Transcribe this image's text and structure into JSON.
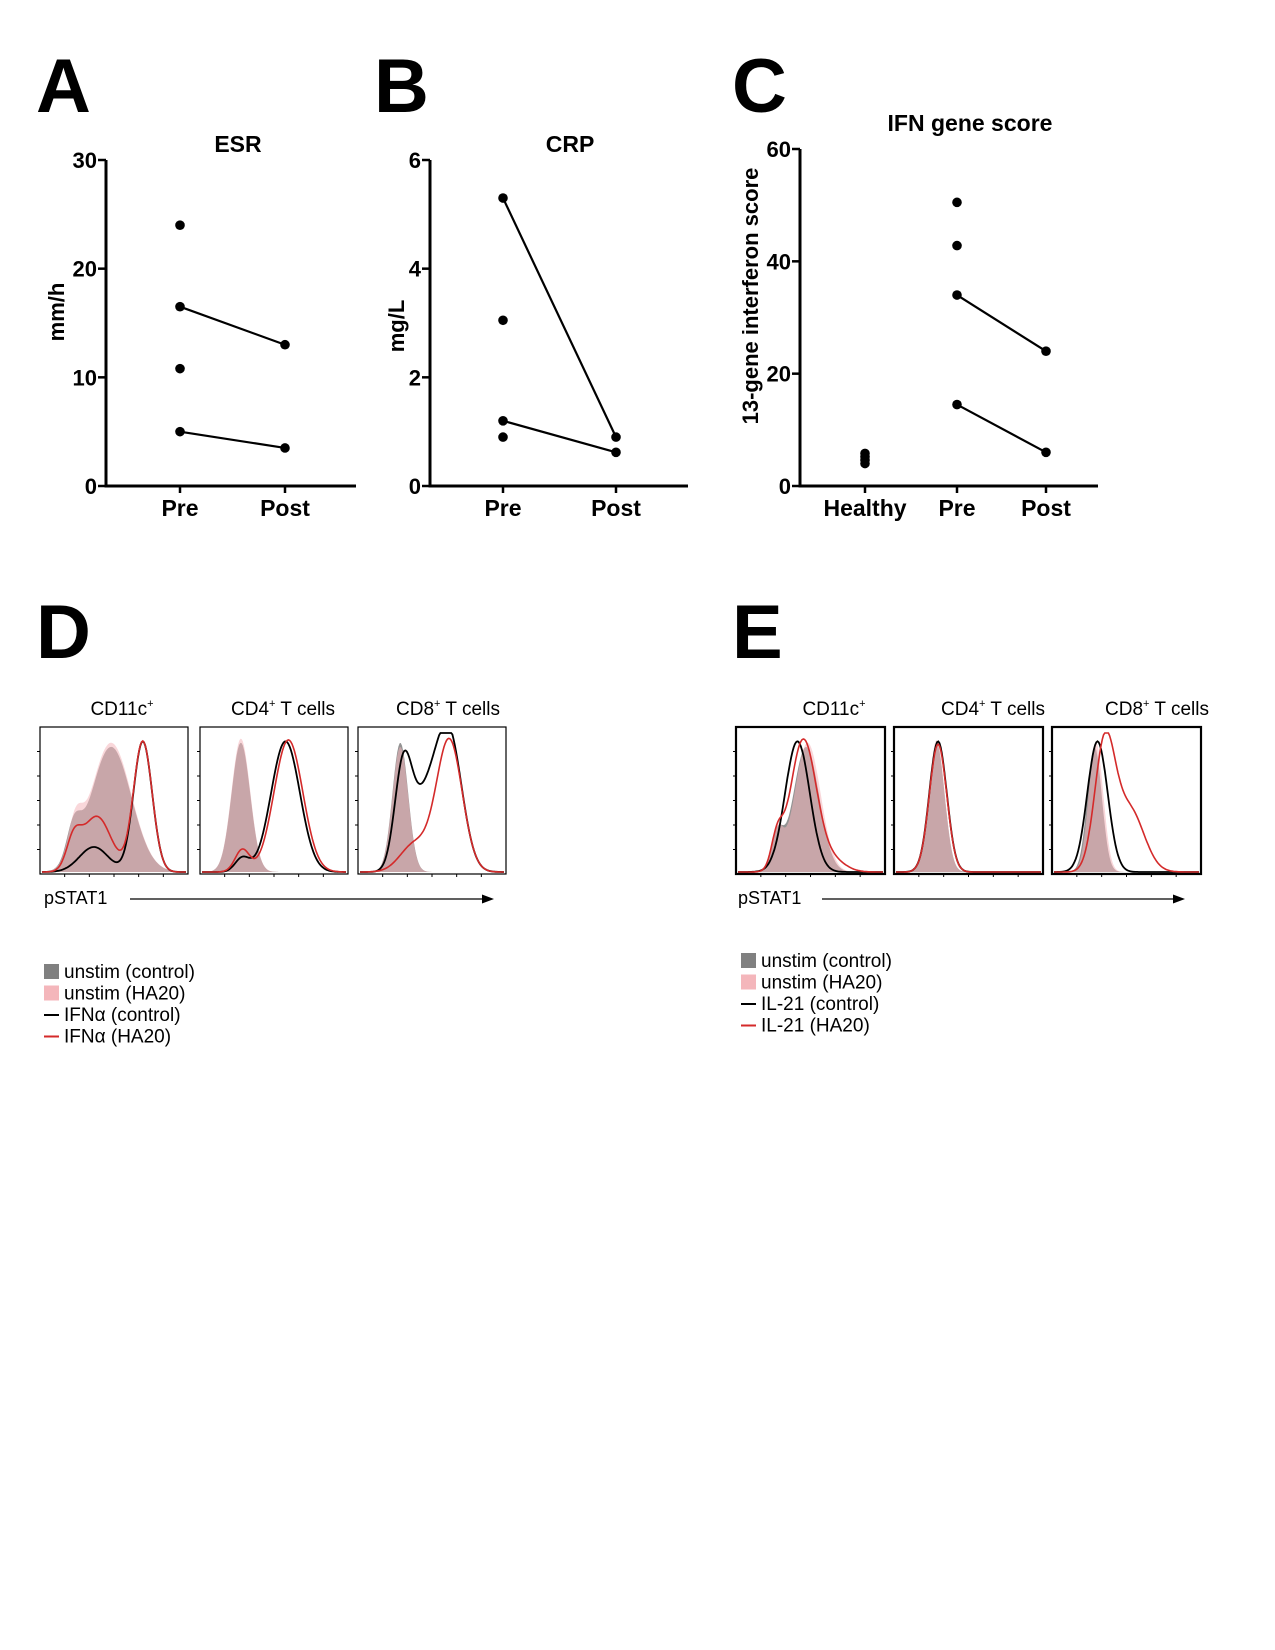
{
  "colors": {
    "axis": "#000000",
    "unstim_control": "#808080",
    "unstim_ha20": "#f4b6bb",
    "overlap": "#8c6c6c",
    "stim_control": "#000000",
    "stim_ha20": "#d42a2a"
  },
  "chart_data": [
    {
      "panel": "A",
      "type": "scatter",
      "title": "ESR",
      "xlabel": "",
      "ylabel": "mm/h",
      "ylim": [
        0,
        30
      ],
      "yticks": [
        "0",
        "10",
        "20",
        "30"
      ],
      "categories": [
        "Pre",
        "Post"
      ],
      "points": [
        {
          "category": "Pre",
          "value": 24
        },
        {
          "category": "Pre",
          "value": 16.5
        },
        {
          "category": "Pre",
          "value": 10.8
        },
        {
          "category": "Pre",
          "value": 5
        },
        {
          "category": "Post",
          "value": 13
        },
        {
          "category": "Post",
          "value": 3.5
        }
      ],
      "paired_lines": [
        {
          "from": {
            "category": "Pre",
            "value": 16.5
          },
          "to": {
            "category": "Post",
            "value": 13
          }
        },
        {
          "from": {
            "category": "Pre",
            "value": 5
          },
          "to": {
            "category": "Post",
            "value": 3.5
          }
        }
      ]
    },
    {
      "panel": "B",
      "type": "scatter",
      "title": "CRP",
      "xlabel": "",
      "ylabel": "mg/L",
      "ylim": [
        0,
        6
      ],
      "yticks": [
        "0",
        "2",
        "4",
        "6"
      ],
      "categories": [
        "Pre",
        "Post"
      ],
      "points": [
        {
          "category": "Pre",
          "value": 5.3
        },
        {
          "category": "Pre",
          "value": 3.05
        },
        {
          "category": "Pre",
          "value": 1.2
        },
        {
          "category": "Pre",
          "value": 0.9
        },
        {
          "category": "Post",
          "value": 0.9
        },
        {
          "category": "Post",
          "value": 0.62
        }
      ],
      "paired_lines": [
        {
          "from": {
            "category": "Pre",
            "value": 5.3
          },
          "to": {
            "category": "Post",
            "value": 0.9
          }
        },
        {
          "from": {
            "category": "Pre",
            "value": 1.2
          },
          "to": {
            "category": "Post",
            "value": 0.62
          }
        }
      ]
    },
    {
      "panel": "C",
      "type": "scatter",
      "title": "IFN gene score",
      "xlabel": "",
      "ylabel": "13-gene interferon score",
      "ylim": [
        0,
        60
      ],
      "yticks": [
        "0",
        "20",
        "40",
        "60"
      ],
      "categories": [
        "Healthy",
        "Pre",
        "Post"
      ],
      "points": [
        {
          "category": "Healthy",
          "value": 5.8
        },
        {
          "category": "Healthy",
          "value": 5.2
        },
        {
          "category": "Healthy",
          "value": 4.6
        },
        {
          "category": "Healthy",
          "value": 4.0
        },
        {
          "category": "Pre",
          "value": 50.5
        },
        {
          "category": "Pre",
          "value": 42.8
        },
        {
          "category": "Pre",
          "value": 34
        },
        {
          "category": "Pre",
          "value": 14.5
        },
        {
          "category": "Post",
          "value": 24
        },
        {
          "category": "Post",
          "value": 6
        }
      ],
      "paired_lines": [
        {
          "from": {
            "category": "Pre",
            "value": 34
          },
          "to": {
            "category": "Post",
            "value": 24
          }
        },
        {
          "from": {
            "category": "Pre",
            "value": 14.5
          },
          "to": {
            "category": "Post",
            "value": 6
          }
        }
      ]
    },
    {
      "panel": "D",
      "type": "histogram-overlay",
      "xlabel": "pSTAT1",
      "plots": [
        {
          "title_main": "CD11c",
          "title_sup": "+",
          "title_rest": "",
          "curves": {
            "unstim_control": [
              {
                "c": 0.48,
                "w": 0.14,
                "h": 0.9
              },
              {
                "c": 0.22,
                "w": 0.05,
                "h": 0.25
              }
            ],
            "unstim_ha20": [
              {
                "c": 0.48,
                "w": 0.14,
                "h": 0.93
              },
              {
                "c": 0.23,
                "w": 0.05,
                "h": 0.27
              }
            ],
            "stim_control": [
              {
                "c": 0.7,
                "w": 0.065,
                "h": 0.94
              },
              {
                "c": 0.36,
                "w": 0.1,
                "h": 0.18
              }
            ],
            "stim_ha20": [
              {
                "c": 0.7,
                "w": 0.065,
                "h": 0.94
              },
              {
                "c": 0.38,
                "w": 0.1,
                "h": 0.4
              },
              {
                "c": 0.22,
                "w": 0.05,
                "h": 0.2
              }
            ]
          }
        },
        {
          "title_main": "CD4",
          "title_sup": "+",
          "title_rest": " T cells",
          "curves": {
            "unstim_control": [
              {
                "c": 0.27,
                "w": 0.065,
                "h": 0.93
              }
            ],
            "unstim_ha20": [
              {
                "c": 0.27,
                "w": 0.065,
                "h": 0.96
              }
            ],
            "stim_control": [
              {
                "c": 0.58,
                "w": 0.1,
                "h": 0.94
              },
              {
                "c": 0.28,
                "w": 0.05,
                "h": 0.1
              }
            ],
            "stim_ha20": [
              {
                "c": 0.6,
                "w": 0.1,
                "h": 0.95
              },
              {
                "c": 0.28,
                "w": 0.05,
                "h": 0.16
              }
            ]
          }
        },
        {
          "title_main": "CD8",
          "title_sup": "+",
          "title_rest": " T cells",
          "curves": {
            "unstim_control": [
              {
                "c": 0.28,
                "w": 0.055,
                "h": 0.93
              }
            ],
            "unstim_ha20": [
              {
                "c": 0.28,
                "w": 0.055,
                "h": 0.9
              }
            ],
            "stim_control": [
              {
                "c": 0.62,
                "w": 0.09,
                "h": 0.94
              },
              {
                "c": 0.3,
                "w": 0.06,
                "h": 0.7
              },
              {
                "c": 0.45,
                "w": 0.1,
                "h": 0.48
              }
            ],
            "stim_ha20": [
              {
                "c": 0.62,
                "w": 0.09,
                "h": 0.95
              },
              {
                "c": 0.38,
                "w": 0.1,
                "h": 0.2
              }
            ]
          }
        }
      ],
      "legend": [
        {
          "key": "unstim_control",
          "label": "unstim (control)",
          "kind": "fill"
        },
        {
          "key": "unstim_ha20",
          "label": "unstim (HA20)",
          "kind": "fill"
        },
        {
          "key": "stim_control",
          "label": "IFNα (control)",
          "kind": "line"
        },
        {
          "key": "stim_ha20",
          "label": "IFNα (HA20)",
          "kind": "line"
        }
      ]
    },
    {
      "panel": "E",
      "type": "histogram-overlay",
      "xlabel": "pSTAT1",
      "plots": [
        {
          "title_main": "CD11c",
          "title_sup": "+",
          "title_rest": "",
          "curves": {
            "unstim_control": [
              {
                "c": 0.47,
                "w": 0.09,
                "h": 0.9
              },
              {
                "c": 0.27,
                "w": 0.04,
                "h": 0.25
              }
            ],
            "unstim_ha20": [
              {
                "c": 0.48,
                "w": 0.09,
                "h": 0.93
              },
              {
                "c": 0.27,
                "w": 0.04,
                "h": 0.28
              }
            ],
            "stim_control": [
              {
                "c": 0.41,
                "w": 0.085,
                "h": 0.94
              }
            ],
            "stim_ha20": [
              {
                "c": 0.45,
                "w": 0.09,
                "h": 0.95
              },
              {
                "c": 0.65,
                "w": 0.09,
                "h": 0.08
              },
              {
                "c": 0.27,
                "w": 0.04,
                "h": 0.22
              }
            ]
          }
        },
        {
          "title_main": "CD4",
          "title_sup": "+",
          "title_rest": " T cells",
          "curves": {
            "unstim_control": [
              {
                "c": 0.28,
                "w": 0.055,
                "h": 0.93
              }
            ],
            "unstim_ha20": [
              {
                "c": 0.28,
                "w": 0.055,
                "h": 0.95
              }
            ],
            "stim_control": [
              {
                "c": 0.29,
                "w": 0.06,
                "h": 0.94
              }
            ],
            "stim_ha20": [
              {
                "c": 0.29,
                "w": 0.06,
                "h": 0.92
              }
            ]
          }
        },
        {
          "title_main": "CD8",
          "title_sup": "+",
          "title_rest": " T cells",
          "curves": {
            "unstim_control": [
              {
                "c": 0.28,
                "w": 0.05,
                "h": 0.9
              }
            ],
            "unstim_ha20": [
              {
                "c": 0.29,
                "w": 0.05,
                "h": 0.93
              }
            ],
            "stim_control": [
              {
                "c": 0.3,
                "w": 0.07,
                "h": 0.94
              }
            ],
            "stim_ha20": [
              {
                "c": 0.35,
                "w": 0.07,
                "h": 0.9
              },
              {
                "c": 0.52,
                "w": 0.1,
                "h": 0.45
              }
            ]
          }
        }
      ],
      "legend": [
        {
          "key": "unstim_control",
          "label": "unstim (control)",
          "kind": "fill"
        },
        {
          "key": "unstim_ha20",
          "label": "unstim (HA20)",
          "kind": "fill"
        },
        {
          "key": "stim_control",
          "label": "IL-21 (control)",
          "kind": "line"
        },
        {
          "key": "stim_ha20",
          "label": "IL-21 (HA20)",
          "kind": "line"
        }
      ]
    }
  ]
}
